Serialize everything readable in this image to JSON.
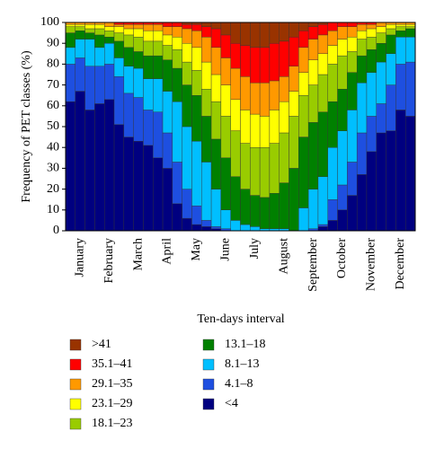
{
  "chart_data": {
    "type": "stacked_bar",
    "y_label": "Frequency of PET classes (%)",
    "x_label": "Ten-days interval",
    "categories": [
      null,
      "January",
      null,
      null,
      "February",
      null,
      null,
      "March",
      null,
      null,
      "April",
      null,
      null,
      "May",
      null,
      null,
      "June",
      null,
      null,
      "July",
      null,
      null,
      "August",
      null,
      null,
      "September",
      null,
      null,
      "October",
      null,
      null,
      "November",
      null,
      null,
      "December",
      null
    ],
    "ylim": [
      0,
      100
    ],
    "yticks": [
      0,
      10,
      20,
      30,
      40,
      50,
      60,
      70,
      80,
      90,
      100
    ],
    "series": [
      {
        "name": "<4",
        "color": "#000080",
        "values": [
          62,
          67,
          58,
          61,
          63,
          51,
          45,
          43,
          41,
          35,
          30,
          13,
          6,
          3,
          2,
          1,
          0,
          0,
          0,
          0,
          0,
          0,
          0,
          0,
          0,
          0,
          2,
          5,
          10,
          17,
          27,
          38,
          47,
          48,
          58,
          55
        ]
      },
      {
        "name": "4.1–8",
        "color": "#1e4fe0",
        "values": [
          18,
          16,
          21,
          18,
          17,
          23,
          21,
          21,
          17,
          22,
          17,
          20,
          14,
          9,
          3,
          1,
          1,
          0,
          0,
          0,
          0,
          0,
          0,
          0,
          0,
          1,
          1,
          10,
          12,
          16,
          20,
          17,
          14,
          22,
          22,
          26
        ]
      },
      {
        "name": "8.1–13",
        "color": "#00bfff",
        "values": [
          8,
          9,
          13,
          9,
          10,
          9,
          13,
          14,
          15,
          16,
          20,
          29,
          30,
          31,
          28,
          18,
          9,
          5,
          3,
          2,
          1,
          1,
          1,
          0,
          11,
          19,
          23,
          25,
          26,
          25,
          24,
          21,
          20,
          15,
          13,
          12
        ]
      },
      {
        "name": "13.1–18",
        "color": "#008000",
        "values": [
          7,
          4,
          3,
          6,
          3,
          8,
          9,
          8,
          11,
          11,
          15,
          16,
          20,
          22,
          22,
          24,
          25,
          21,
          17,
          15,
          15,
          17,
          22,
          30,
          34,
          32,
          31,
          22,
          20,
          18,
          13,
          11,
          9,
          9,
          3,
          4
        ]
      },
      {
        "name": "18.1–23",
        "color": "#99cc00",
        "values": [
          3,
          2,
          2,
          3,
          3,
          4,
          6,
          7,
          7,
          7,
          7,
          9,
          11,
          12,
          13,
          18,
          20,
          22,
          22,
          23,
          24,
          24,
          24,
          25,
          20,
          18,
          18,
          18,
          16,
          10,
          8,
          6,
          5,
          3,
          2,
          1
        ]
      },
      {
        "name": "23.1–29",
        "color": "#ffff00",
        "values": [
          1,
          1,
          2,
          2,
          2,
          3,
          3,
          4,
          5,
          5,
          5,
          6,
          9,
          11,
          13,
          13,
          15,
          15,
          16,
          16,
          15,
          16,
          15,
          12,
          11,
          12,
          10,
          9,
          8,
          7,
          4,
          4,
          3,
          2,
          1,
          1
        ]
      },
      {
        "name": "29.1–35",
        "color": "#ff9900",
        "values": [
          1,
          1,
          1,
          1,
          2,
          1,
          2,
          2,
          3,
          3,
          4,
          5,
          7,
          8,
          12,
          13,
          13,
          15,
          16,
          15,
          16,
          14,
          12,
          12,
          12,
          10,
          9,
          7,
          6,
          5,
          3,
          2,
          2,
          1,
          1,
          1
        ]
      },
      {
        "name": "35.1–41",
        "color": "#ff0000",
        "values": [
          0,
          0,
          0,
          0,
          0,
          1,
          1,
          1,
          1,
          1,
          2,
          2,
          2,
          3,
          5,
          9,
          11,
          12,
          15,
          17,
          17,
          18,
          17,
          14,
          8,
          6,
          5,
          4,
          2,
          2,
          1,
          1,
          0,
          0,
          0,
          0
        ]
      },
      {
        "name": ">41",
        "color": "#993300",
        "values": [
          0,
          0,
          0,
          0,
          0,
          0,
          0,
          0,
          0,
          0,
          0,
          0,
          1,
          1,
          2,
          3,
          6,
          10,
          11,
          12,
          12,
          10,
          9,
          7,
          4,
          2,
          1,
          0,
          0,
          0,
          0,
          0,
          0,
          0,
          0,
          0
        ]
      }
    ]
  }
}
